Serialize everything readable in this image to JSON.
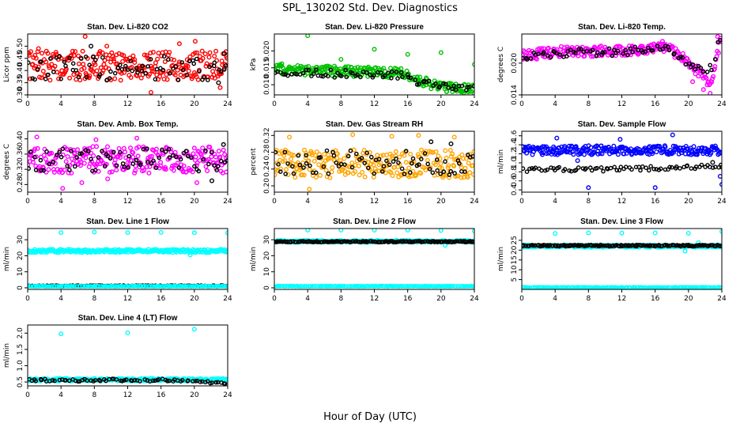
{
  "figure": {
    "title": "SPL_130202  Std. Dev. Diagnostics",
    "xlabel": "Hour of Day (UTC)"
  },
  "chart_data": [
    {
      "type": "scatter",
      "title": "Stan. Dev. Li-820 CO2",
      "ylabel": "Licor ppm",
      "xlim": [
        0,
        24
      ],
      "xticks": [
        0,
        4,
        8,
        12,
        16,
        20,
        24
      ],
      "ylim": [
        0.3,
        0.55
      ],
      "yticks": [
        0.3,
        0.35,
        0.4,
        0.45,
        0.5
      ],
      "ytick_labels": [
        "0.30",
        "0.35",
        "0.40",
        "0.45",
        "0.50"
      ],
      "series": [
        {
          "color": "#ff0000",
          "kind": "band",
          "center": 0.42,
          "spread": 0.06,
          "outliers": [
            [
              6.9,
              0.54
            ],
            [
              14.8,
              0.31
            ],
            [
              18.2,
              0.51
            ],
            [
              20.1,
              0.52
            ],
            [
              23.1,
              0.33
            ],
            [
              1.3,
              0.49
            ],
            [
              9.5,
              0.5
            ]
          ]
        },
        {
          "color": "#000000",
          "kind": "sparse",
          "center": 0.41,
          "spread": 0.05,
          "outliers": [
            [
              7.6,
              0.5
            ],
            [
              22.9,
              0.35
            ],
            [
              23.6,
              0.47
            ]
          ]
        }
      ]
    },
    {
      "type": "scatter",
      "title": "Stan. Dev. Li-820 Pressure",
      "ylabel": "kPa",
      "xlim": [
        0,
        24
      ],
      "xticks": [
        0,
        4,
        8,
        12,
        16,
        20,
        24
      ],
      "ylim": [
        0.007,
        0.025
      ],
      "yticks": [
        0.01,
        0.015,
        0.02
      ],
      "ytick_labels": [
        "0.010",
        "0.015",
        "0.020"
      ],
      "series": [
        {
          "color": "#00c000",
          "kind": "band",
          "profile": [
            [
              0,
              0.0145
            ],
            [
              15,
              0.0135
            ],
            [
              17,
              0.0115
            ],
            [
              20,
              0.0095
            ],
            [
              24,
              0.0087
            ]
          ],
          "spread": 0.0015,
          "outliers": [
            [
              4.0,
              0.0245
            ],
            [
              8.0,
              0.0175
            ],
            [
              12.0,
              0.0205
            ],
            [
              16.0,
              0.019
            ],
            [
              20.0,
              0.0195
            ],
            [
              24.0,
              0.016
            ],
            [
              0.9,
              0.0162
            ],
            [
              9.2,
              0.0152
            ]
          ]
        },
        {
          "color": "#000000",
          "kind": "sparse",
          "profile": [
            [
              0,
              0.0135
            ],
            [
              15,
              0.013
            ],
            [
              17,
              0.0112
            ],
            [
              20,
              0.0093
            ],
            [
              24,
              0.0086
            ]
          ],
          "spread": 0.0012,
          "outliers": []
        }
      ]
    },
    {
      "type": "scatter",
      "title": "Stan. Dev. Li-820 Temp.",
      "ylabel": "degrees C",
      "xlim": [
        0,
        24
      ],
      "xticks": [
        0,
        4,
        8,
        12,
        16,
        20,
        24
      ],
      "ylim": [
        0.014,
        0.0255
      ],
      "yticks": [
        0.014,
        0.02
      ],
      "ytick_labels": [
        "0.014",
        "0.020"
      ],
      "series": [
        {
          "color": "#ff00ff",
          "kind": "band",
          "profile": [
            [
              0,
              0.0215
            ],
            [
              6,
              0.0223
            ],
            [
              12,
              0.0222
            ],
            [
              17,
              0.0232
            ],
            [
              19,
              0.0215
            ],
            [
              21.5,
              0.018
            ],
            [
              22.8,
              0.016
            ],
            [
              23.3,
              0.0215
            ],
            [
              24,
              0.0245
            ]
          ],
          "spread": 0.001,
          "outliers": [
            [
              22.6,
              0.0143
            ],
            [
              21.8,
              0.015
            ],
            [
              23.5,
              0.025
            ],
            [
              20.5,
              0.0165
            ]
          ]
        },
        {
          "color": "#000000",
          "kind": "sparse",
          "profile": [
            [
              0,
              0.0212
            ],
            [
              6,
              0.022
            ],
            [
              12,
              0.0221
            ],
            [
              17,
              0.023
            ],
            [
              19,
              0.021
            ],
            [
              21.5,
              0.019
            ],
            [
              23.0,
              0.019
            ],
            [
              23.5,
              0.0245
            ],
            [
              24,
              0.025
            ]
          ],
          "spread": 0.0007,
          "outliers": []
        }
      ]
    },
    {
      "type": "scatter",
      "title": "Stan. Dev. Amb. Box Temp.",
      "ylabel": "degrees C",
      "xlim": [
        0,
        24
      ],
      "xticks": [
        0,
        4,
        8,
        12,
        16,
        20,
        24
      ],
      "ylim": [
        0.26,
        0.42
      ],
      "yticks": [
        0.28,
        0.32,
        0.36,
        0.4
      ],
      "ytick_labels": [
        "0.28",
        "0.32",
        "0.36",
        "0.40"
      ],
      "series": [
        {
          "color": "#ff00ff",
          "kind": "band",
          "center": 0.345,
          "spread": 0.035,
          "outliers": [
            [
              1.1,
              0.405
            ],
            [
              4.2,
              0.27
            ],
            [
              6.5,
              0.285
            ],
            [
              8.2,
              0.398
            ],
            [
              9.6,
              0.295
            ],
            [
              13.1,
              0.402
            ],
            [
              20.3,
              0.285
            ]
          ]
        },
        {
          "color": "#000000",
          "kind": "sparse",
          "center": 0.345,
          "spread": 0.03,
          "outliers": [
            [
              23.5,
              0.385
            ],
            [
              22.1,
              0.29
            ]
          ]
        }
      ]
    },
    {
      "type": "scatter",
      "title": "Stan. Dev. Gas Stream RH",
      "ylabel": "percent",
      "xlim": [
        0,
        24
      ],
      "xticks": [
        0,
        4,
        8,
        12,
        16,
        20,
        24
      ],
      "ylim": [
        0.185,
        0.33
      ],
      "yticks": [
        0.2,
        0.24,
        0.28,
        0.32
      ],
      "ytick_labels": [
        "0.20",
        "0.24",
        "0.28",
        "0.32"
      ],
      "series": [
        {
          "color": "#ffa500",
          "kind": "band",
          "center": 0.253,
          "spread": 0.034,
          "outliers": [
            [
              4.2,
              0.192
            ],
            [
              9.4,
              0.322
            ],
            [
              14.1,
              0.318
            ],
            [
              17.3,
              0.32
            ],
            [
              1.8,
              0.316
            ],
            [
              21.6,
              0.316
            ]
          ]
        },
        {
          "color": "#000000",
          "kind": "sparse",
          "center": 0.255,
          "spread": 0.03,
          "outliers": [
            [
              18.8,
              0.305
            ],
            [
              21.2,
              0.3
            ]
          ]
        }
      ]
    },
    {
      "type": "scatter",
      "title": "Stan. Dev. Sample Flow",
      "ylabel": "ml/min",
      "xlim": [
        0,
        24
      ],
      "xticks": [
        0,
        4,
        8,
        12,
        16,
        20,
        24
      ],
      "ylim": [
        0.35,
        1.7
      ],
      "yticks": [
        0.4,
        0.6,
        0.8,
        1.0,
        1.2,
        1.4,
        1.6
      ],
      "ytick_labels": [
        "0.4",
        "0.6",
        "0.8",
        "1.0",
        "1.2",
        "1.4",
        "1.6"
      ],
      "series": [
        {
          "color": "#0000ff",
          "kind": "band",
          "center": 1.28,
          "spread": 0.1,
          "outliers": [
            [
              8.0,
              0.45
            ],
            [
              16.0,
              0.45
            ],
            [
              24.0,
              0.52
            ],
            [
              23.8,
              0.7
            ],
            [
              4.2,
              1.55
            ],
            [
              11.8,
              1.52
            ],
            [
              18.1,
              1.62
            ],
            [
              6.7,
              1.05
            ]
          ]
        },
        {
          "color": "#000000",
          "kind": "sparse",
          "profile": [
            [
              0.3,
              0.85
            ],
            [
              12,
              0.86
            ],
            [
              20,
              0.9
            ],
            [
              24,
              0.95
            ]
          ],
          "spread": 0.05,
          "outliers": [
            [
              23.9,
              0.95
            ],
            [
              22.9,
              1.01
            ]
          ]
        }
      ]
    },
    {
      "type": "scatter",
      "title": "Stan. Dev. Line 1 Flow",
      "ylabel": "ml/min",
      "xlim": [
        0,
        24
      ],
      "xticks": [
        0,
        4,
        8,
        12,
        16,
        20,
        24
      ],
      "ylim": [
        -1,
        37
      ],
      "yticks": [
        0,
        10,
        20,
        30
      ],
      "ytick_labels": [
        "0",
        "10",
        "20",
        "30"
      ],
      "series": [
        {
          "color": "#00ffff",
          "kind": "band",
          "center": 23,
          "spread": 1.0,
          "outliers": [
            [
              4.0,
              34.5
            ],
            [
              8.0,
              34.8
            ],
            [
              12.0,
              34.5
            ],
            [
              16.0,
              34.6
            ],
            [
              20.0,
              34.4
            ],
            [
              24.0,
              34.3
            ],
            [
              19.5,
              20.5
            ]
          ]
        },
        {
          "color": "#000000",
          "kind": "line",
          "center": 1.2,
          "spread": 0.25,
          "outliers": []
        },
        {
          "color": "#00ffff",
          "kind": "line",
          "center": 1.0,
          "spread": 0.15,
          "outliers": []
        }
      ]
    },
    {
      "type": "scatter",
      "title": "Stan. Dev. Line 2 Flow",
      "ylabel": "ml/min",
      "xlim": [
        0,
        24
      ],
      "xticks": [
        0,
        4,
        8,
        12,
        16,
        20,
        24
      ],
      "ylim": [
        -1,
        37
      ],
      "yticks": [
        0,
        10,
        20,
        30
      ],
      "ytick_labels": [
        "0",
        "10",
        "20",
        "30"
      ],
      "series": [
        {
          "color": "#00ffff",
          "kind": "band",
          "center": 29,
          "spread": 0.6,
          "outliers": [
            [
              4.0,
              36.0
            ],
            [
              8.0,
              36.0
            ],
            [
              12.0,
              36.0
            ],
            [
              16.0,
              36.0
            ],
            [
              20.0,
              35.8
            ],
            [
              24.0,
              35.5
            ],
            [
              20.5,
              26.5
            ]
          ]
        },
        {
          "color": "#000000",
          "kind": "line",
          "center": 28.8,
          "spread": 0.35,
          "outliers": []
        },
        {
          "color": "#00ffff",
          "kind": "line",
          "center": 1.0,
          "spread": 0.15,
          "outliers": []
        }
      ]
    },
    {
      "type": "scatter",
      "title": "Stan. Dev. Line 3 Flow",
      "ylabel": "ml/min",
      "xlim": [
        0,
        24
      ],
      "xticks": [
        0,
        4,
        8,
        12,
        16,
        20,
        24
      ],
      "ylim": [
        0,
        31
      ],
      "yticks": [
        5,
        10,
        15,
        20,
        25
      ],
      "ytick_labels": [
        "5",
        "10",
        "15",
        "20",
        "25"
      ],
      "series": [
        {
          "color": "#00ffff",
          "kind": "band",
          "center": 22,
          "spread": 0.6,
          "outliers": [
            [
              4.0,
              28.5
            ],
            [
              8.0,
              28.8
            ],
            [
              12.0,
              28.7
            ],
            [
              16.0,
              28.8
            ],
            [
              20.0,
              28.6
            ],
            [
              24.0,
              29.5
            ],
            [
              19.6,
              19.5
            ],
            [
              21.2,
              23.8
            ]
          ]
        },
        {
          "color": "#000000",
          "kind": "line",
          "center": 22.3,
          "spread": 0.35,
          "outliers": []
        },
        {
          "color": "#00ffff",
          "kind": "line",
          "center": 1.0,
          "spread": 0.15,
          "outliers": []
        }
      ]
    },
    {
      "type": "scatter",
      "title": "Stan. Dev. Line 4 (LT) Flow",
      "ylabel": "ml/min",
      "xlim": [
        0,
        24
      ],
      "xticks": [
        0,
        4,
        8,
        12,
        16,
        20,
        24
      ],
      "ylim": [
        0.38,
        2.25
      ],
      "yticks": [
        0.5,
        1.0,
        1.5,
        2.0
      ],
      "ytick_labels": [
        "0.5",
        "1.0",
        "1.5",
        "2.0"
      ],
      "series": [
        {
          "color": "#00ffff",
          "kind": "band",
          "center": 0.57,
          "spread": 0.04,
          "outliers": [
            [
              4.0,
              1.98
            ],
            [
              12.0,
              2.01
            ],
            [
              20.0,
              2.12
            ]
          ]
        },
        {
          "color": "#000000",
          "kind": "sparse",
          "profile": [
            [
              0.3,
              0.55
            ],
            [
              12,
              0.56
            ],
            [
              20,
              0.55
            ],
            [
              22,
              0.47
            ],
            [
              24,
              0.47
            ]
          ],
          "spread": 0.04,
          "outliers": []
        }
      ]
    }
  ]
}
